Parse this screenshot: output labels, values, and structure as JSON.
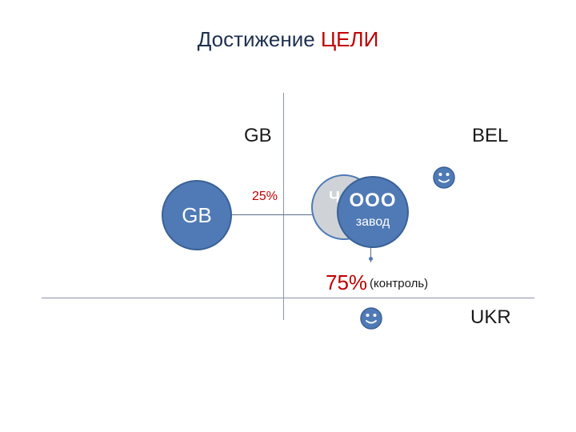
{
  "title": {
    "main": "Достижение",
    "accent": "ЦЕЛИ"
  },
  "regions": {
    "gb": "GB",
    "bel": "BEL",
    "ukr": "UKR"
  },
  "entities": {
    "gb_company": "GB",
    "hidden_company": "Ч",
    "ooo_company": {
      "line1": "ООО",
      "line2": "завод"
    }
  },
  "shares": {
    "gb_share": "25%",
    "control_share": "75%",
    "control_note": "(контроль)"
  },
  "icons": [
    "smiley-icon",
    "smiley-icon"
  ],
  "colors": {
    "entity_fill": "#4f7ab5",
    "accent": "#c00000",
    "lines": "#8a96a8"
  }
}
